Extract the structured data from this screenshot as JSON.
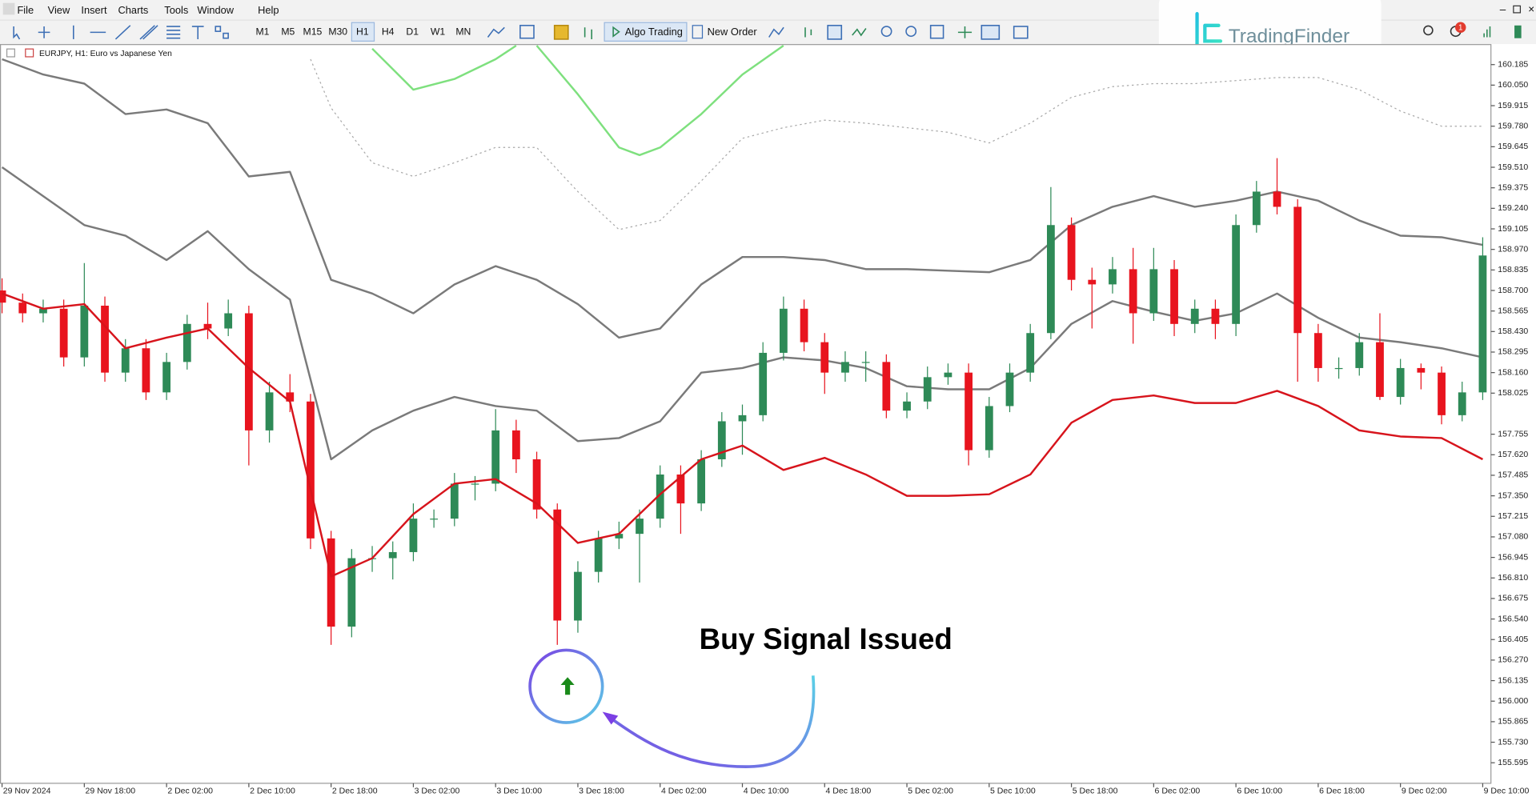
{
  "menu": [
    "File",
    "View",
    "Insert",
    "Charts",
    "Tools",
    "Window",
    "Help"
  ],
  "toolbar": {
    "timeframes": [
      "M1",
      "M5",
      "M15",
      "M30",
      "H1",
      "H4",
      "D1",
      "W1",
      "MN"
    ],
    "algo_trading": "Algo Trading",
    "new_order": "New Order"
  },
  "logo": "TradingFinder",
  "notification_count": 1,
  "chart_data": {
    "type": "candlestick",
    "title": "EURJPY, H1: Euro vs Japanese Yen",
    "annotation": "Buy Signal Issued",
    "up_color": "#2e8a57",
    "down_color": "#e8141e",
    "x": [
      0,
      2,
      4,
      6,
      8,
      10,
      12,
      14,
      16,
      18,
      20,
      22,
      24,
      26,
      28,
      30,
      32,
      34,
      36,
      38,
      40,
      42,
      44,
      46,
      48,
      50,
      52,
      54,
      56,
      58,
      60,
      62,
      64,
      66,
      68,
      70,
      72,
      74,
      76,
      78,
      80,
      82,
      84,
      86,
      88,
      90,
      92,
      94,
      96,
      98,
      100,
      102,
      104,
      106,
      108,
      110,
      112,
      114,
      116,
      118,
      120,
      122,
      124,
      126,
      128,
      130,
      132,
      134,
      136,
      138,
      140,
      142,
      144
    ],
    "open": [
      158.7,
      158.62,
      158.55,
      158.58,
      158.26,
      158.6,
      158.16,
      158.32,
      158.03,
      158.23,
      158.48,
      158.45,
      158.55,
      157.78,
      158.03,
      157.97,
      157.07,
      156.49,
      156.94,
      156.94,
      156.98,
      157.2,
      157.2,
      157.43,
      157.43,
      157.78,
      157.59,
      157.26,
      156.53,
      156.85,
      157.07,
      157.1,
      157.2,
      157.49,
      157.3,
      157.59,
      157.84,
      157.88,
      158.29,
      158.58,
      158.36,
      158.16,
      158.23,
      158.23,
      157.91,
      157.97,
      158.13,
      158.16,
      157.65,
      157.94,
      158.16,
      158.42,
      159.13,
      158.77,
      158.74,
      158.84,
      158.55,
      158.84,
      158.48,
      158.58,
      158.48,
      159.13,
      159.35,
      159.25,
      158.42,
      158.19,
      158.19,
      158.36,
      158.0,
      158.19,
      158.16,
      157.88,
      158.03
    ],
    "high": [
      158.78,
      158.68,
      158.64,
      158.64,
      158.88,
      158.66,
      158.38,
      158.38,
      158.29,
      158.54,
      158.62,
      158.64,
      158.6,
      158.1,
      158.15,
      158.02,
      157.12,
      157.0,
      157.02,
      157.05,
      157.3,
      157.26,
      157.5,
      157.48,
      157.92,
      157.85,
      157.64,
      157.3,
      156.92,
      157.12,
      157.18,
      157.26,
      157.55,
      157.55,
      157.65,
      157.9,
      157.95,
      158.36,
      158.66,
      158.64,
      158.42,
      158.3,
      158.3,
      158.28,
      158.03,
      158.2,
      158.22,
      158.22,
      158.0,
      158.22,
      158.48,
      159.38,
      159.18,
      158.85,
      158.92,
      158.98,
      158.98,
      158.9,
      158.64,
      158.64,
      159.2,
      159.42,
      159.57,
      159.3,
      158.48,
      158.26,
      158.42,
      158.55,
      158.25,
      158.22,
      158.2,
      158.1,
      159.05
    ],
    "low": [
      158.55,
      158.49,
      158.49,
      158.2,
      158.2,
      158.1,
      158.1,
      157.98,
      157.98,
      158.18,
      158.38,
      158.4,
      157.55,
      157.7,
      157.9,
      157.0,
      156.37,
      156.42,
      156.85,
      156.8,
      156.92,
      157.14,
      157.15,
      157.32,
      157.38,
      157.5,
      157.2,
      156.37,
      156.45,
      156.78,
      157.0,
      156.78,
      157.14,
      157.1,
      157.25,
      157.54,
      157.62,
      157.84,
      158.24,
      158.3,
      158.02,
      158.1,
      158.1,
      157.86,
      157.86,
      157.92,
      158.08,
      157.55,
      157.6,
      157.9,
      158.1,
      158.38,
      158.7,
      158.45,
      158.68,
      158.35,
      158.5,
      158.4,
      158.42,
      158.38,
      158.4,
      159.08,
      159.2,
      158.1,
      158.1,
      158.12,
      158.14,
      157.98,
      157.95,
      158.05,
      157.82,
      157.84,
      157.98
    ],
    "close": [
      158.62,
      158.55,
      158.58,
      158.26,
      158.6,
      158.16,
      158.32,
      158.03,
      158.23,
      158.48,
      158.45,
      158.55,
      157.78,
      158.03,
      157.97,
      157.07,
      156.49,
      156.94,
      156.94,
      156.98,
      157.2,
      157.2,
      157.43,
      157.43,
      157.78,
      157.59,
      157.26,
      156.53,
      156.85,
      157.07,
      157.1,
      157.2,
      157.49,
      157.3,
      157.59,
      157.84,
      157.88,
      158.29,
      158.58,
      158.36,
      158.16,
      158.23,
      158.23,
      157.91,
      157.97,
      158.13,
      158.16,
      157.65,
      157.94,
      158.16,
      158.42,
      159.13,
      158.77,
      158.74,
      158.84,
      158.55,
      158.84,
      158.48,
      158.58,
      158.48,
      159.13,
      159.35,
      159.25,
      158.42,
      158.19,
      158.19,
      158.36,
      158.0,
      158.19,
      158.16,
      157.88,
      158.03,
      158.93
    ],
    "series": [
      {
        "color": "#7a7a7a",
        "style": "solid",
        "x": [
          0,
          4,
          8,
          12,
          16,
          20,
          24,
          28,
          32,
          36,
          40,
          44,
          48,
          52,
          56,
          60,
          64,
          68,
          72,
          76,
          80,
          84,
          88,
          92,
          96,
          100,
          104,
          108,
          112,
          116,
          120,
          124,
          128,
          132,
          136,
          140,
          144
        ],
        "values": [
          160.22,
          160.12,
          160.06,
          159.86,
          159.89,
          159.8,
          159.45,
          159.48,
          158.77,
          158.68,
          158.55,
          158.74,
          158.86,
          158.77,
          158.61,
          158.39,
          158.45,
          158.74,
          158.92,
          158.92,
          158.9,
          158.84,
          158.84,
          158.83,
          158.82,
          158.9,
          159.13,
          159.25,
          159.32,
          159.25,
          159.29,
          159.35,
          159.29,
          159.16,
          159.06,
          159.05,
          159.0
        ]
      },
      {
        "color": "#7a7a7a",
        "style": "solid",
        "x": [
          0,
          4,
          8,
          12,
          16,
          20,
          24,
          28,
          32,
          36,
          40,
          44,
          48,
          52,
          56,
          60,
          64,
          68,
          72,
          76,
          80,
          84,
          88,
          92,
          96,
          100,
          104,
          108,
          112,
          116,
          120,
          124,
          128,
          132,
          136,
          140,
          144
        ],
        "values": [
          159.51,
          159.32,
          159.13,
          159.06,
          158.9,
          159.09,
          158.84,
          158.64,
          157.59,
          157.78,
          157.91,
          158.0,
          157.94,
          157.91,
          157.71,
          157.73,
          157.84,
          158.16,
          158.19,
          158.26,
          158.24,
          158.19,
          158.07,
          158.05,
          158.05,
          158.19,
          158.48,
          158.63,
          158.56,
          158.5,
          158.55,
          158.68,
          158.52,
          158.39,
          158.36,
          158.32,
          158.26
        ]
      },
      {
        "color": "#a8a8a8",
        "style": "dotted",
        "x": [
          30,
          32,
          36,
          40,
          44,
          48,
          52,
          56,
          60,
          64,
          68,
          72,
          76,
          80,
          84,
          88,
          92,
          96,
          100,
          104,
          108,
          112,
          116,
          120,
          124,
          128,
          132,
          136,
          140,
          144
        ],
        "values": [
          160.22,
          159.9,
          159.54,
          159.45,
          159.54,
          159.64,
          159.64,
          159.35,
          159.1,
          159.16,
          159.42,
          159.7,
          159.77,
          159.82,
          159.8,
          159.77,
          159.74,
          159.67,
          159.8,
          159.97,
          160.04,
          160.06,
          160.06,
          160.08,
          160.1,
          160.1,
          160.02,
          159.88,
          159.78,
          159.78
        ]
      },
      {
        "color": "#7ee07e",
        "style": "solid",
        "x": [
          36,
          40,
          44,
          48,
          50,
          51,
          52,
          56,
          60,
          62,
          64,
          68,
          72,
          76
        ],
        "values": [
          160.29,
          160.02,
          160.09,
          160.22,
          160.31,
          null,
          160.31,
          159.99,
          159.64,
          159.59,
          159.64,
          159.86,
          160.12,
          160.31
        ]
      },
      {
        "color": "#d7141c",
        "style": "solid",
        "x": [
          0,
          4,
          8,
          12,
          16,
          20,
          24,
          28,
          32,
          36,
          40,
          44,
          48,
          52,
          56,
          60,
          64,
          68,
          72,
          76,
          80,
          84,
          88,
          92,
          96,
          100,
          104,
          108,
          112,
          116,
          120,
          124,
          128,
          132,
          136,
          140,
          144
        ],
        "values": [
          158.68,
          158.58,
          158.61,
          158.32,
          158.39,
          158.45,
          158.19,
          157.97,
          156.82,
          156.94,
          157.23,
          157.43,
          157.46,
          157.3,
          157.04,
          157.1,
          157.36,
          157.59,
          157.68,
          157.52,
          157.6,
          157.49,
          157.35,
          157.35,
          157.36,
          157.49,
          157.83,
          157.98,
          158.01,
          157.96,
          157.96,
          158.04,
          157.94,
          157.78,
          157.74,
          157.73,
          157.59
        ]
      }
    ],
    "buy_signal": {
      "x": 55,
      "value": 156.1,
      "color": "#1a8a1a"
    },
    "xlim": [
      -0.2,
      144.8
    ],
    "xticks": [
      {
        "value": 0,
        "label": "29 Nov 2024"
      },
      {
        "value": 8,
        "label": "29 Nov 18:00"
      },
      {
        "value": 16,
        "label": "2 Dec 02:00"
      },
      {
        "value": 24,
        "label": "2 Dec 10:00"
      },
      {
        "value": 32,
        "label": "2 Dec 18:00"
      },
      {
        "value": 40,
        "label": "3 Dec 02:00"
      },
      {
        "value": 48,
        "label": "3 Dec 10:00"
      },
      {
        "value": 56,
        "label": "3 Dec 18:00"
      },
      {
        "value": 64,
        "label": "4 Dec 02:00"
      },
      {
        "value": 72,
        "label": "4 Dec 10:00"
      },
      {
        "value": 80,
        "label": "4 Dec 18:00"
      },
      {
        "value": 88,
        "label": "5 Dec 02:00"
      },
      {
        "value": 96,
        "label": "5 Dec 10:00"
      },
      {
        "value": 104,
        "label": "5 Dec 18:00"
      },
      {
        "value": 112,
        "label": "6 Dec 02:00"
      },
      {
        "value": 120,
        "label": "6 Dec 10:00"
      },
      {
        "value": 128,
        "label": "6 Dec 18:00"
      },
      {
        "value": 136,
        "label": "9 Dec 02:00"
      },
      {
        "value": 144,
        "label": "9 Dec 10:00"
      }
    ],
    "ylim": [
      155.46,
      160.32
    ],
    "yticks": [
      160.185,
      {
        "value": 160.05,
        "label": "160.050"
      },
      159.915,
      {
        "value": 159.78,
        "label": "159.780"
      },
      159.645,
      {
        "value": 159.51,
        "label": "159.510"
      },
      159.375,
      {
        "value": 159.24,
        "label": "159.240"
      },
      159.105,
      {
        "value": 158.97,
        "label": "158.970"
      },
      158.835,
      {
        "value": 158.7,
        "label": "158.700"
      },
      158.565,
      {
        "value": 158.43,
        "label": "158.430"
      },
      158.295,
      {
        "value": 158.16,
        "label": "158.160"
      },
      158.025,
      157.755,
      {
        "value": 157.62,
        "label": "157.620"
      },
      157.485,
      {
        "value": 157.35,
        "label": "157.350"
      },
      157.215,
      {
        "value": 157.08,
        "label": "157.080"
      },
      156.945,
      {
        "value": 156.81,
        "label": "156.810"
      },
      156.675,
      {
        "value": 156.54,
        "label": "156.540"
      },
      156.405,
      {
        "value": 156.27,
        "label": "156.270"
      },
      156.135,
      {
        "value": 156,
        "label": "156.000"
      },
      155.865,
      {
        "value": 155.73,
        "label": "155.730"
      },
      155.595
    ],
    "grid": false
  }
}
